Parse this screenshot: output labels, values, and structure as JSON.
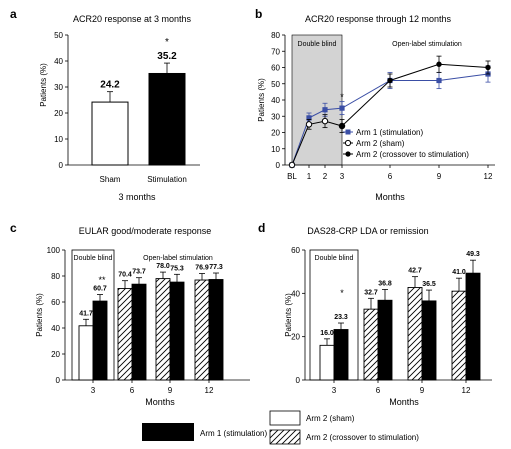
{
  "chart_data": [
    {
      "panel": "a",
      "type": "bar",
      "title": "ACR20 response at 3 months",
      "ylabel": "Patients (%)",
      "xlabel": "3 months",
      "ylim": [
        0,
        50
      ],
      "yticks": [
        0,
        10,
        20,
        30,
        40,
        50
      ],
      "categories": [
        "Sham",
        "Stimulation"
      ],
      "values": [
        24.2,
        35.2
      ],
      "value_labels": [
        "24.2",
        "35.2"
      ],
      "errors": [
        4,
        4
      ],
      "fills": [
        "#ffffff",
        "#000000"
      ],
      "significance": "*"
    },
    {
      "panel": "b",
      "type": "line",
      "title": "ACR20 response through 12 months",
      "ylabel": "Patients (%)",
      "xlabel": "Months",
      "ylim": [
        0,
        80
      ],
      "yticks": [
        0,
        10,
        20,
        30,
        40,
        50,
        60,
        70,
        80
      ],
      "x_ticks": [
        "BL",
        "1",
        "2",
        "3",
        "6",
        "9",
        "12"
      ],
      "shaded_label": "Double blind",
      "open_label": "Open-label stimulation",
      "significance": "*",
      "series": [
        {
          "name": "Arm 1 (stimulation)",
          "x": [
            "BL",
            "1",
            "2",
            "3",
            "6",
            "9",
            "12"
          ],
          "values": [
            0,
            29,
            34,
            35,
            52,
            52,
            56
          ],
          "errors": [
            0,
            3,
            4,
            4,
            5,
            5,
            5
          ],
          "color": "#3a4ea5",
          "marker": "square"
        },
        {
          "name": "Arm 2 (sham)",
          "x": [
            "BL",
            "1",
            "2",
            "3"
          ],
          "values": [
            0,
            25,
            27,
            24
          ],
          "errors": [
            0,
            3,
            4,
            4
          ],
          "color": "#000000",
          "marker": "open-circle"
        },
        {
          "name": "Arm 2 (crossover to stimulation)",
          "x": [
            "3",
            "6",
            "9",
            "12"
          ],
          "values": [
            24,
            52,
            62,
            60
          ],
          "errors": [
            0,
            4,
            5,
            4
          ],
          "color": "#000000",
          "marker": "filled-circle"
        }
      ]
    },
    {
      "panel": "c",
      "type": "bar",
      "title": "EULAR good/moderate response",
      "ylabel": "Patients (%)",
      "xlabel": "Months",
      "ylim": [
        0,
        100
      ],
      "yticks": [
        0,
        20,
        40,
        60,
        80,
        100
      ],
      "categories": [
        "3",
        "6",
        "9",
        "12"
      ],
      "shaded_label": "Double blind",
      "open_label": "Open-label stimulation",
      "significance": "**",
      "series": [
        {
          "name": "Arm 2",
          "values": [
            41.7,
            70.4,
            78.0,
            76.9
          ],
          "labels": [
            "41.7",
            "70.4",
            "78.0",
            "76.9"
          ],
          "errors": [
            5,
            6,
            5,
            5
          ],
          "fills": [
            "white",
            "hatch",
            "hatch",
            "hatch"
          ]
        },
        {
          "name": "Arm 1 (stimulation)",
          "values": [
            60.7,
            73.7,
            75.3,
            77.3
          ],
          "labels": [
            "60.7",
            "73.7",
            "75.3",
            "77.3"
          ],
          "errors": [
            5,
            5,
            6,
            5
          ],
          "fills": [
            "black",
            "black",
            "black",
            "black"
          ]
        }
      ]
    },
    {
      "panel": "d",
      "type": "bar",
      "title": "DAS28-CRP LDA or remission",
      "ylabel": "Patients (%)",
      "xlabel": "Months",
      "ylim": [
        0,
        60
      ],
      "yticks": [
        0,
        20,
        40,
        60
      ],
      "categories": [
        "3",
        "6",
        "9",
        "12"
      ],
      "shaded_label": "Double blind",
      "significance": "*",
      "series": [
        {
          "name": "Arm 2",
          "values": [
            16.0,
            32.7,
            42.7,
            41.0
          ],
          "labels": [
            "16.0",
            "32.7",
            "42.7",
            "41.0"
          ],
          "errors": [
            3,
            5,
            5,
            6
          ],
          "fills": [
            "white",
            "hatch",
            "hatch",
            "hatch"
          ]
        },
        {
          "name": "Arm 1 (stimulation)",
          "values": [
            23.3,
            36.8,
            36.5,
            49.3
          ],
          "labels": [
            "23.3",
            "36.8",
            "36.5",
            "49.3"
          ],
          "errors": [
            3,
            5,
            5,
            6
          ],
          "fills": [
            "black",
            "black",
            "black",
            "black"
          ]
        }
      ]
    }
  ],
  "legend": {
    "arm1": "Arm 1 (stimulation)",
    "arm2_sham": "Arm 2 (sham)",
    "arm2_cross": "Arm 2 (crossover to stimulation)"
  }
}
